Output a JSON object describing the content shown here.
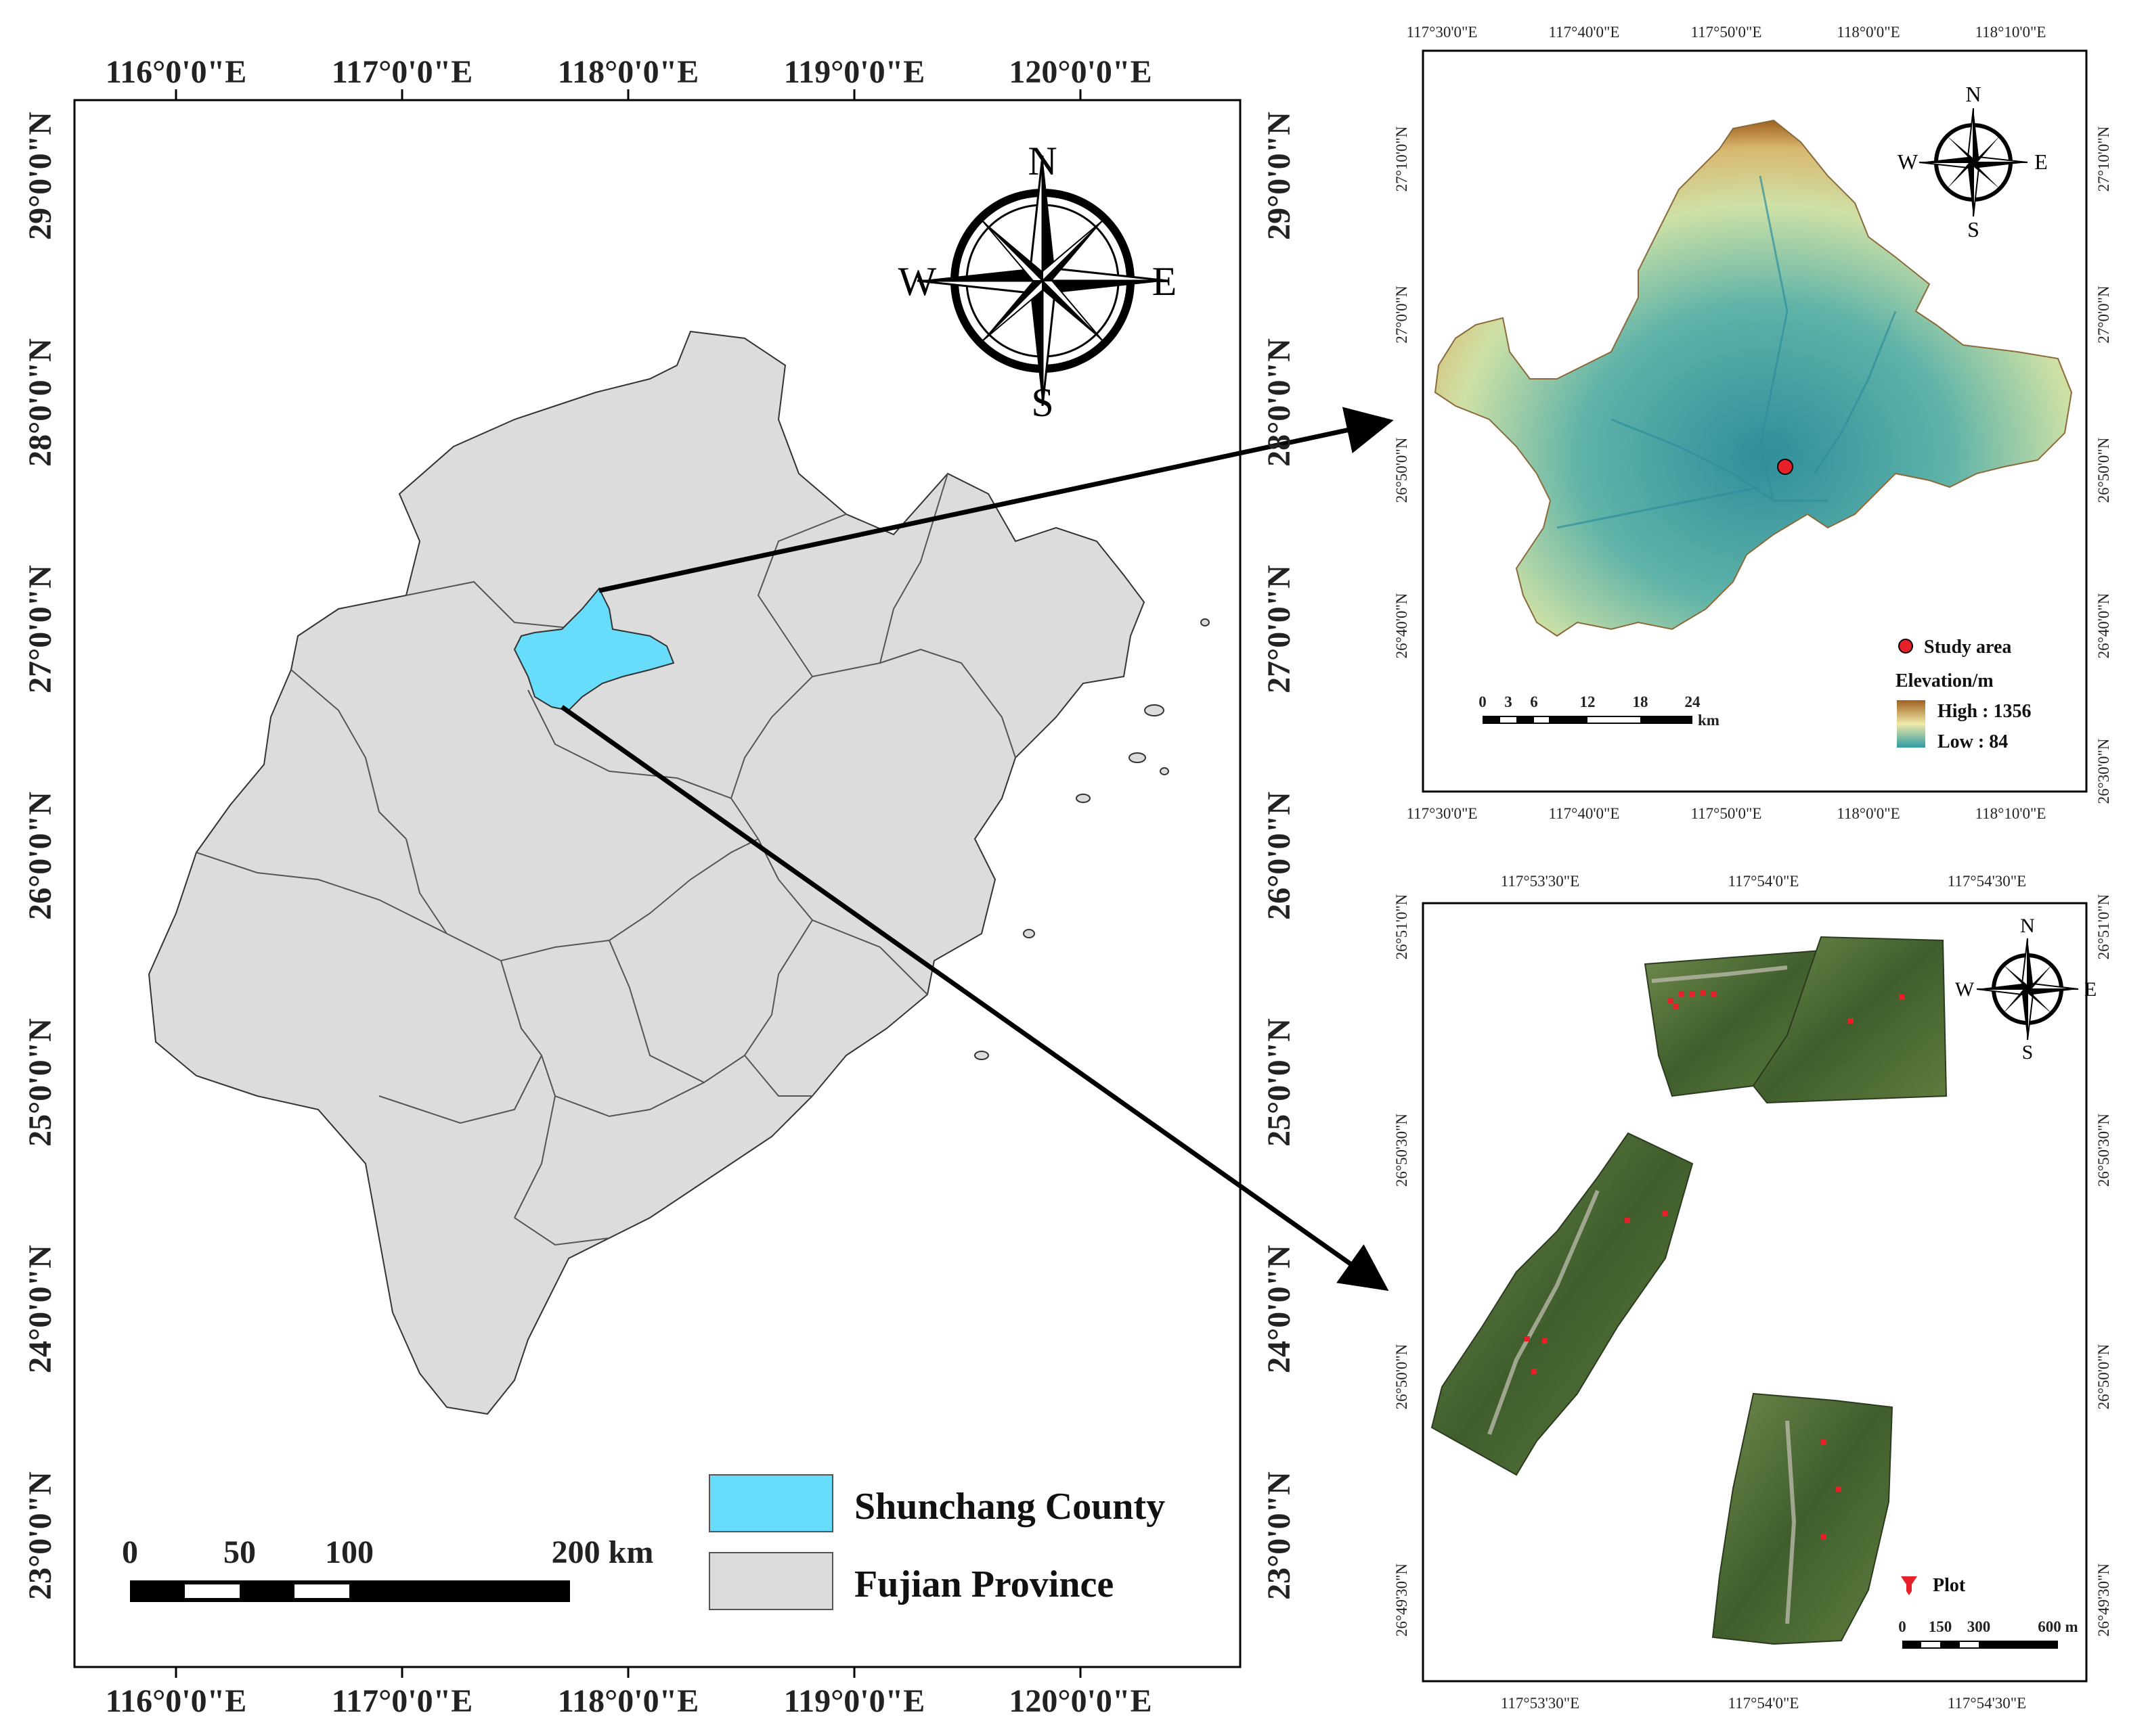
{
  "main_map": {
    "top_lon_labels": [
      "116°0'0\"E",
      "117°0'0\"E",
      "118°0'0\"E",
      "119°0'0\"E",
      "120°0'0\"E"
    ],
    "bottom_lon_labels": [
      "116°0'0\"E",
      "117°0'0\"E",
      "118°0'0\"E",
      "119°0'0\"E",
      "120°0'0\"E"
    ],
    "left_lat_labels": [
      "29°0'0\"N",
      "28°0'0\"N",
      "27°0'0\"N",
      "26°0'0\"N",
      "25°0'0\"N",
      "24°0'0\"N",
      "23°0'0\"N"
    ],
    "right_lat_labels": [
      "29°0'0\"N",
      "28°0'0\"N",
      "27°0'0\"N",
      "26°0'0\"N",
      "25°0'0\"N",
      "24°0'0\"N",
      "23°0'0\"N"
    ],
    "compass": {
      "n": "N",
      "s": "S",
      "e": "E",
      "w": "W"
    },
    "scale_bar": {
      "ticks": [
        "0",
        "50",
        "100",
        "200 km"
      ]
    },
    "legend": [
      {
        "label": "Shunchang County",
        "color": "#67dcfb"
      },
      {
        "label": "Fujian Province",
        "color": "#dcdcdc"
      }
    ]
  },
  "dem_map": {
    "top_lon_labels": [
      "117°30'0\"E",
      "117°40'0\"E",
      "117°50'0\"E",
      "118°0'0\"E",
      "118°10'0\"E"
    ],
    "bottom_lon_labels": [
      "117°30'0\"E",
      "117°40'0\"E",
      "117°50'0\"E",
      "118°0'0\"E",
      "118°10'0\"E"
    ],
    "left_lat_labels": [
      "27°10'0\"N",
      "27°0'0\"N",
      "26°50'0\"N",
      "26°40'0\"N"
    ],
    "right_lat_labels": [
      "27°10'0\"N",
      "27°0'0\"N",
      "26°50'0\"N",
      "26°40'0\"N",
      "26°30'0\"N"
    ],
    "compass": {
      "n": "N",
      "s": "S",
      "e": "E",
      "w": "W"
    },
    "study_area_label": "Study area",
    "elevation_title": "Elevation/m",
    "high_label": "High : 1356",
    "low_label": "Low : 84",
    "scale_bar": {
      "ticks": [
        "0",
        "3",
        "6",
        "12",
        "18",
        "24"
      ],
      "unit": "km"
    },
    "colors": {
      "high": "#a0601f",
      "mid": "#f0e9a8",
      "low": "#2f9aa5",
      "study_point": "#e8202a"
    }
  },
  "uav_map": {
    "top_lon_labels": [
      "117°53'30\"E",
      "117°54'0\"E",
      "117°54'30\"E"
    ],
    "bottom_lon_labels": [
      "117°53'30\"E",
      "117°54'0\"E",
      "117°54'30\"E"
    ],
    "left_lat_labels": [
      "26°51'0\"N",
      "26°50'30\"N",
      "26°50'0\"N",
      "26°49'30\"N"
    ],
    "right_lat_labels": [
      "26°51'0\"N",
      "26°50'30\"N",
      "26°50'0\"N",
      "26°49'30\"N"
    ],
    "compass": {
      "n": "N",
      "s": "S",
      "e": "E",
      "w": "W"
    },
    "plot_label": "Plot",
    "scale_bar": {
      "ticks": [
        "0",
        "150",
        "300",
        "600 m"
      ]
    },
    "colors": {
      "forest": "#4d6b33",
      "plot": "#e8202a"
    }
  }
}
